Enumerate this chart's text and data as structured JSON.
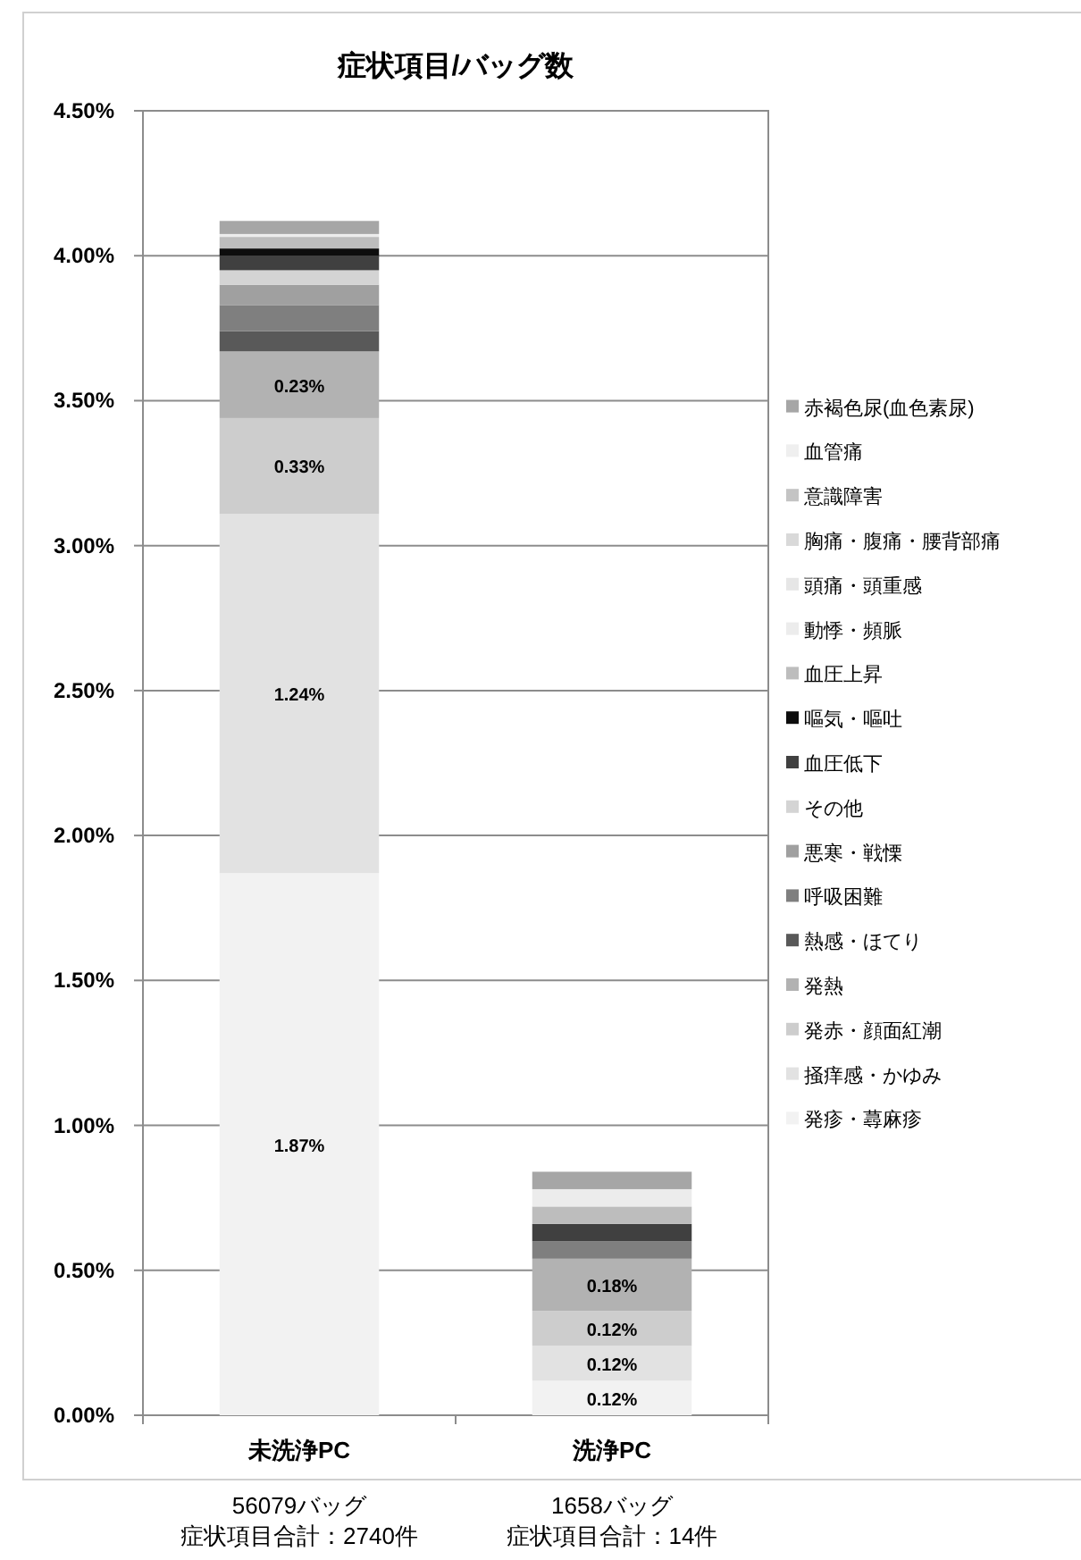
{
  "chart_data": {
    "type": "bar",
    "stacked": true,
    "title": "症状項目/バッグ数",
    "categories": [
      "未洗浄PC",
      "洗浄PC"
    ],
    "series": [
      {
        "name": "発疹・蕁麻疹",
        "color": "#f2f2f2",
        "values": [
          1.87,
          0.12
        ],
        "value_labels": [
          "1.87%",
          "0.12%"
        ]
      },
      {
        "name": "掻痒感・かゆみ",
        "color": "#e2e2e2",
        "values": [
          1.24,
          0.12
        ],
        "value_labels": [
          "1.24%",
          "0.12%"
        ]
      },
      {
        "name": "発赤・顔面紅潮",
        "color": "#cdcdcd",
        "values": [
          0.33,
          0.12
        ],
        "value_labels": [
          "0.33%",
          "0.12%"
        ]
      },
      {
        "name": "発熱",
        "color": "#b2b2b2",
        "values": [
          0.23,
          0.18
        ],
        "value_labels": [
          "0.23%",
          "0.18%"
        ]
      },
      {
        "name": "熱感・ほてり",
        "color": "#595959",
        "values": [
          0.07,
          0
        ]
      },
      {
        "name": "呼吸困難",
        "color": "#7f7f7f",
        "values": [
          0.09,
          0.06
        ]
      },
      {
        "name": "悪寒・戦慄",
        "color": "#a0a0a0",
        "values": [
          0.07,
          0
        ]
      },
      {
        "name": "その他",
        "color": "#d4d4d4",
        "values": [
          0.05,
          0
        ]
      },
      {
        "name": "血圧低下",
        "color": "#404040",
        "values": [
          0.05,
          0.06
        ]
      },
      {
        "name": "嘔気・嘔吐",
        "color": "#0d0d0d",
        "values": [
          0.025,
          0
        ]
      },
      {
        "name": "血圧上昇",
        "color": "#bdbdbd",
        "values": [
          0.04,
          0.06
        ]
      },
      {
        "name": "動悸・頻脈",
        "color": "#ececec",
        "values": [
          0.01,
          0.06
        ]
      },
      {
        "name": "頭痛・頭重感",
        "color": "#e6e6e6",
        "values": [
          null,
          0
        ]
      },
      {
        "name": "胸痛・腹痛・腰背部痛",
        "color": "#d9d9d9",
        "values": [
          null,
          0
        ]
      },
      {
        "name": "意識障害",
        "color": "#c4c4c4",
        "values": [
          null,
          0
        ]
      },
      {
        "name": "血管痛",
        "color": "#efefef",
        "values": [
          null,
          0
        ]
      },
      {
        "name": "赤褐色尿(血色素尿)",
        "color": "#a6a6a6",
        "values": [
          0.045,
          0.06
        ]
      }
    ],
    "ylim": [
      0,
      4.5
    ],
    "yticks": [
      {
        "value": 0,
        "label": "0.00%"
      },
      {
        "value": 0.5,
        "label": "0.50%"
      },
      {
        "value": 1,
        "label": "1.00%"
      },
      {
        "value": 1.5,
        "label": "1.50%"
      },
      {
        "value": 2,
        "label": "2.00%"
      },
      {
        "value": 2.5,
        "label": "2.50%"
      },
      {
        "value": 3,
        "label": "3.00%"
      },
      {
        "value": 3.5,
        "label": "3.50%"
      },
      {
        "value": 4,
        "label": "4.00%"
      },
      {
        "value": 4.5,
        "label": "4.50%"
      }
    ],
    "grid": "y",
    "legend": "right",
    "annotations": [
      "56079バッグ",
      "症状項目合計：2740件",
      "1658バッグ",
      "症状項目合計：14件"
    ]
  }
}
